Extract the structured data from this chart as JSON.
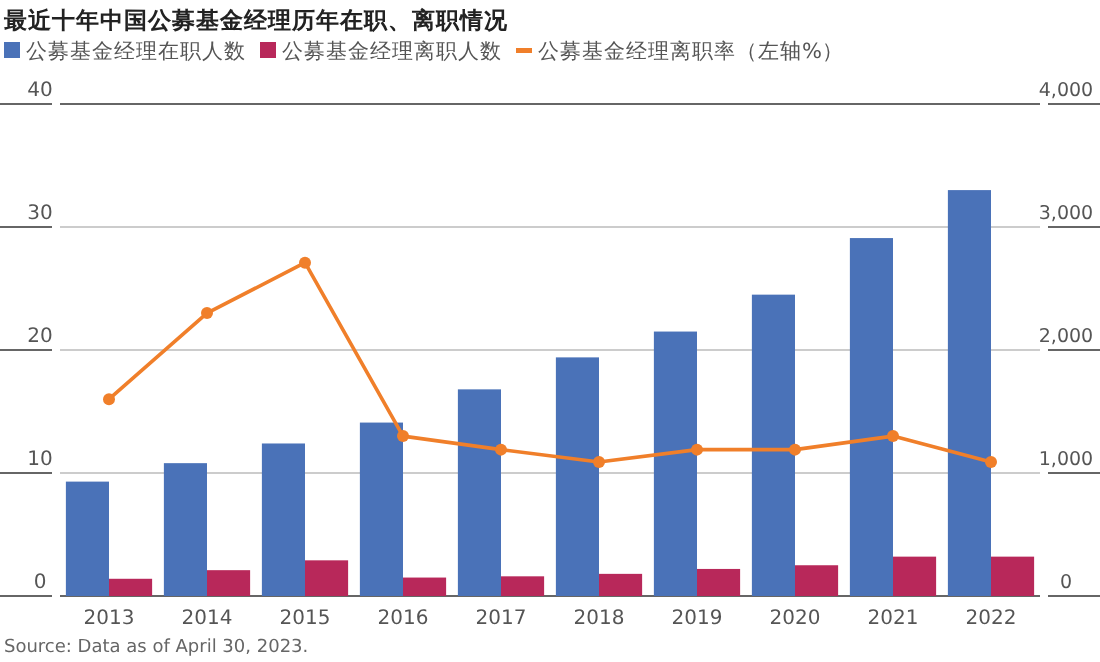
{
  "chart_data": {
    "type": "bar",
    "title": "最近十年中国公募基金经理历年在职、离职情况",
    "categories": [
      "2013",
      "2014",
      "2015",
      "2016",
      "2017",
      "2018",
      "2019",
      "2020",
      "2021",
      "2022"
    ],
    "series": [
      {
        "name": "公募基金经理在职人数",
        "color": "#4a72b8",
        "axis": "y2",
        "values": [
          930,
          1080,
          1240,
          1410,
          1680,
          1940,
          2150,
          2450,
          2910,
          3300
        ]
      },
      {
        "name": "公募基金经理离职人数",
        "color": "#b8285a",
        "axis": "y2",
        "values": [
          140,
          210,
          290,
          150,
          160,
          180,
          220,
          250,
          320,
          320
        ]
      },
      {
        "name": "公募基金经理离职率（左轴%）",
        "type": "line",
        "marker": "circle",
        "color": "#f07f2a",
        "values": [
          16,
          23,
          27.1,
          13,
          11.9,
          10.9,
          11.9,
          11.9,
          13,
          10.9
        ]
      }
    ],
    "ylim": [
      0,
      40
    ],
    "yticks": [
      0,
      10,
      20,
      30,
      40
    ],
    "y2lim": [
      0,
      4000
    ],
    "y2ticks": [
      {
        "value": 0,
        "label": "0"
      },
      {
        "value": 1000,
        "label": "1,000"
      },
      {
        "value": 2000,
        "label": "2,000"
      },
      {
        "value": 3000,
        "label": "3,000"
      },
      {
        "value": 4000,
        "label": "4,000"
      }
    ],
    "grid": "y",
    "legend": "top left",
    "annotations": [
      "Source: Data as of April 30, 2023."
    ]
  }
}
